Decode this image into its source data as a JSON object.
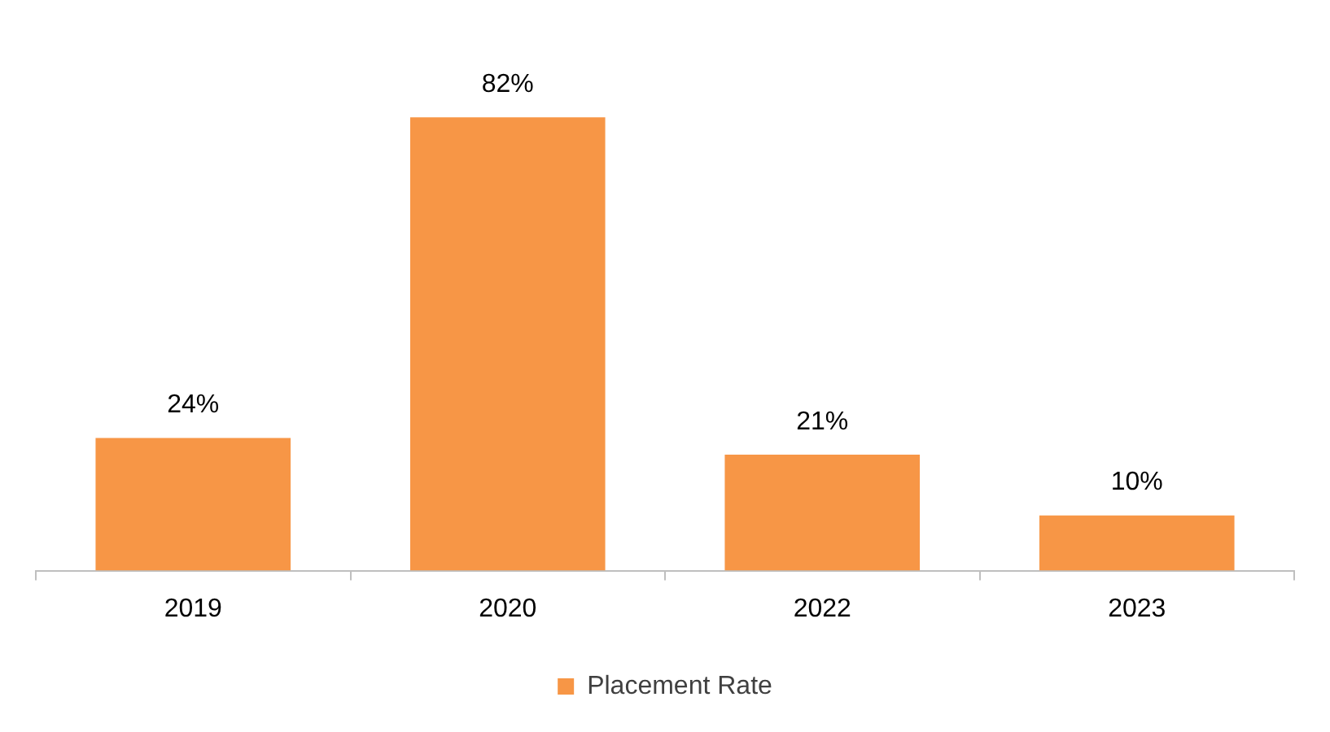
{
  "chart_data": {
    "type": "bar",
    "categories": [
      "2019",
      "2020",
      "2022",
      "2023"
    ],
    "series": [
      {
        "name": "Placement Rate",
        "color": "#f79646",
        "values": [
          24,
          82,
          21,
          10
        ],
        "value_labels": [
          "24%",
          "82%",
          "21%",
          "10%"
        ]
      }
    ],
    "legend": "bottom",
    "grid": false
  }
}
